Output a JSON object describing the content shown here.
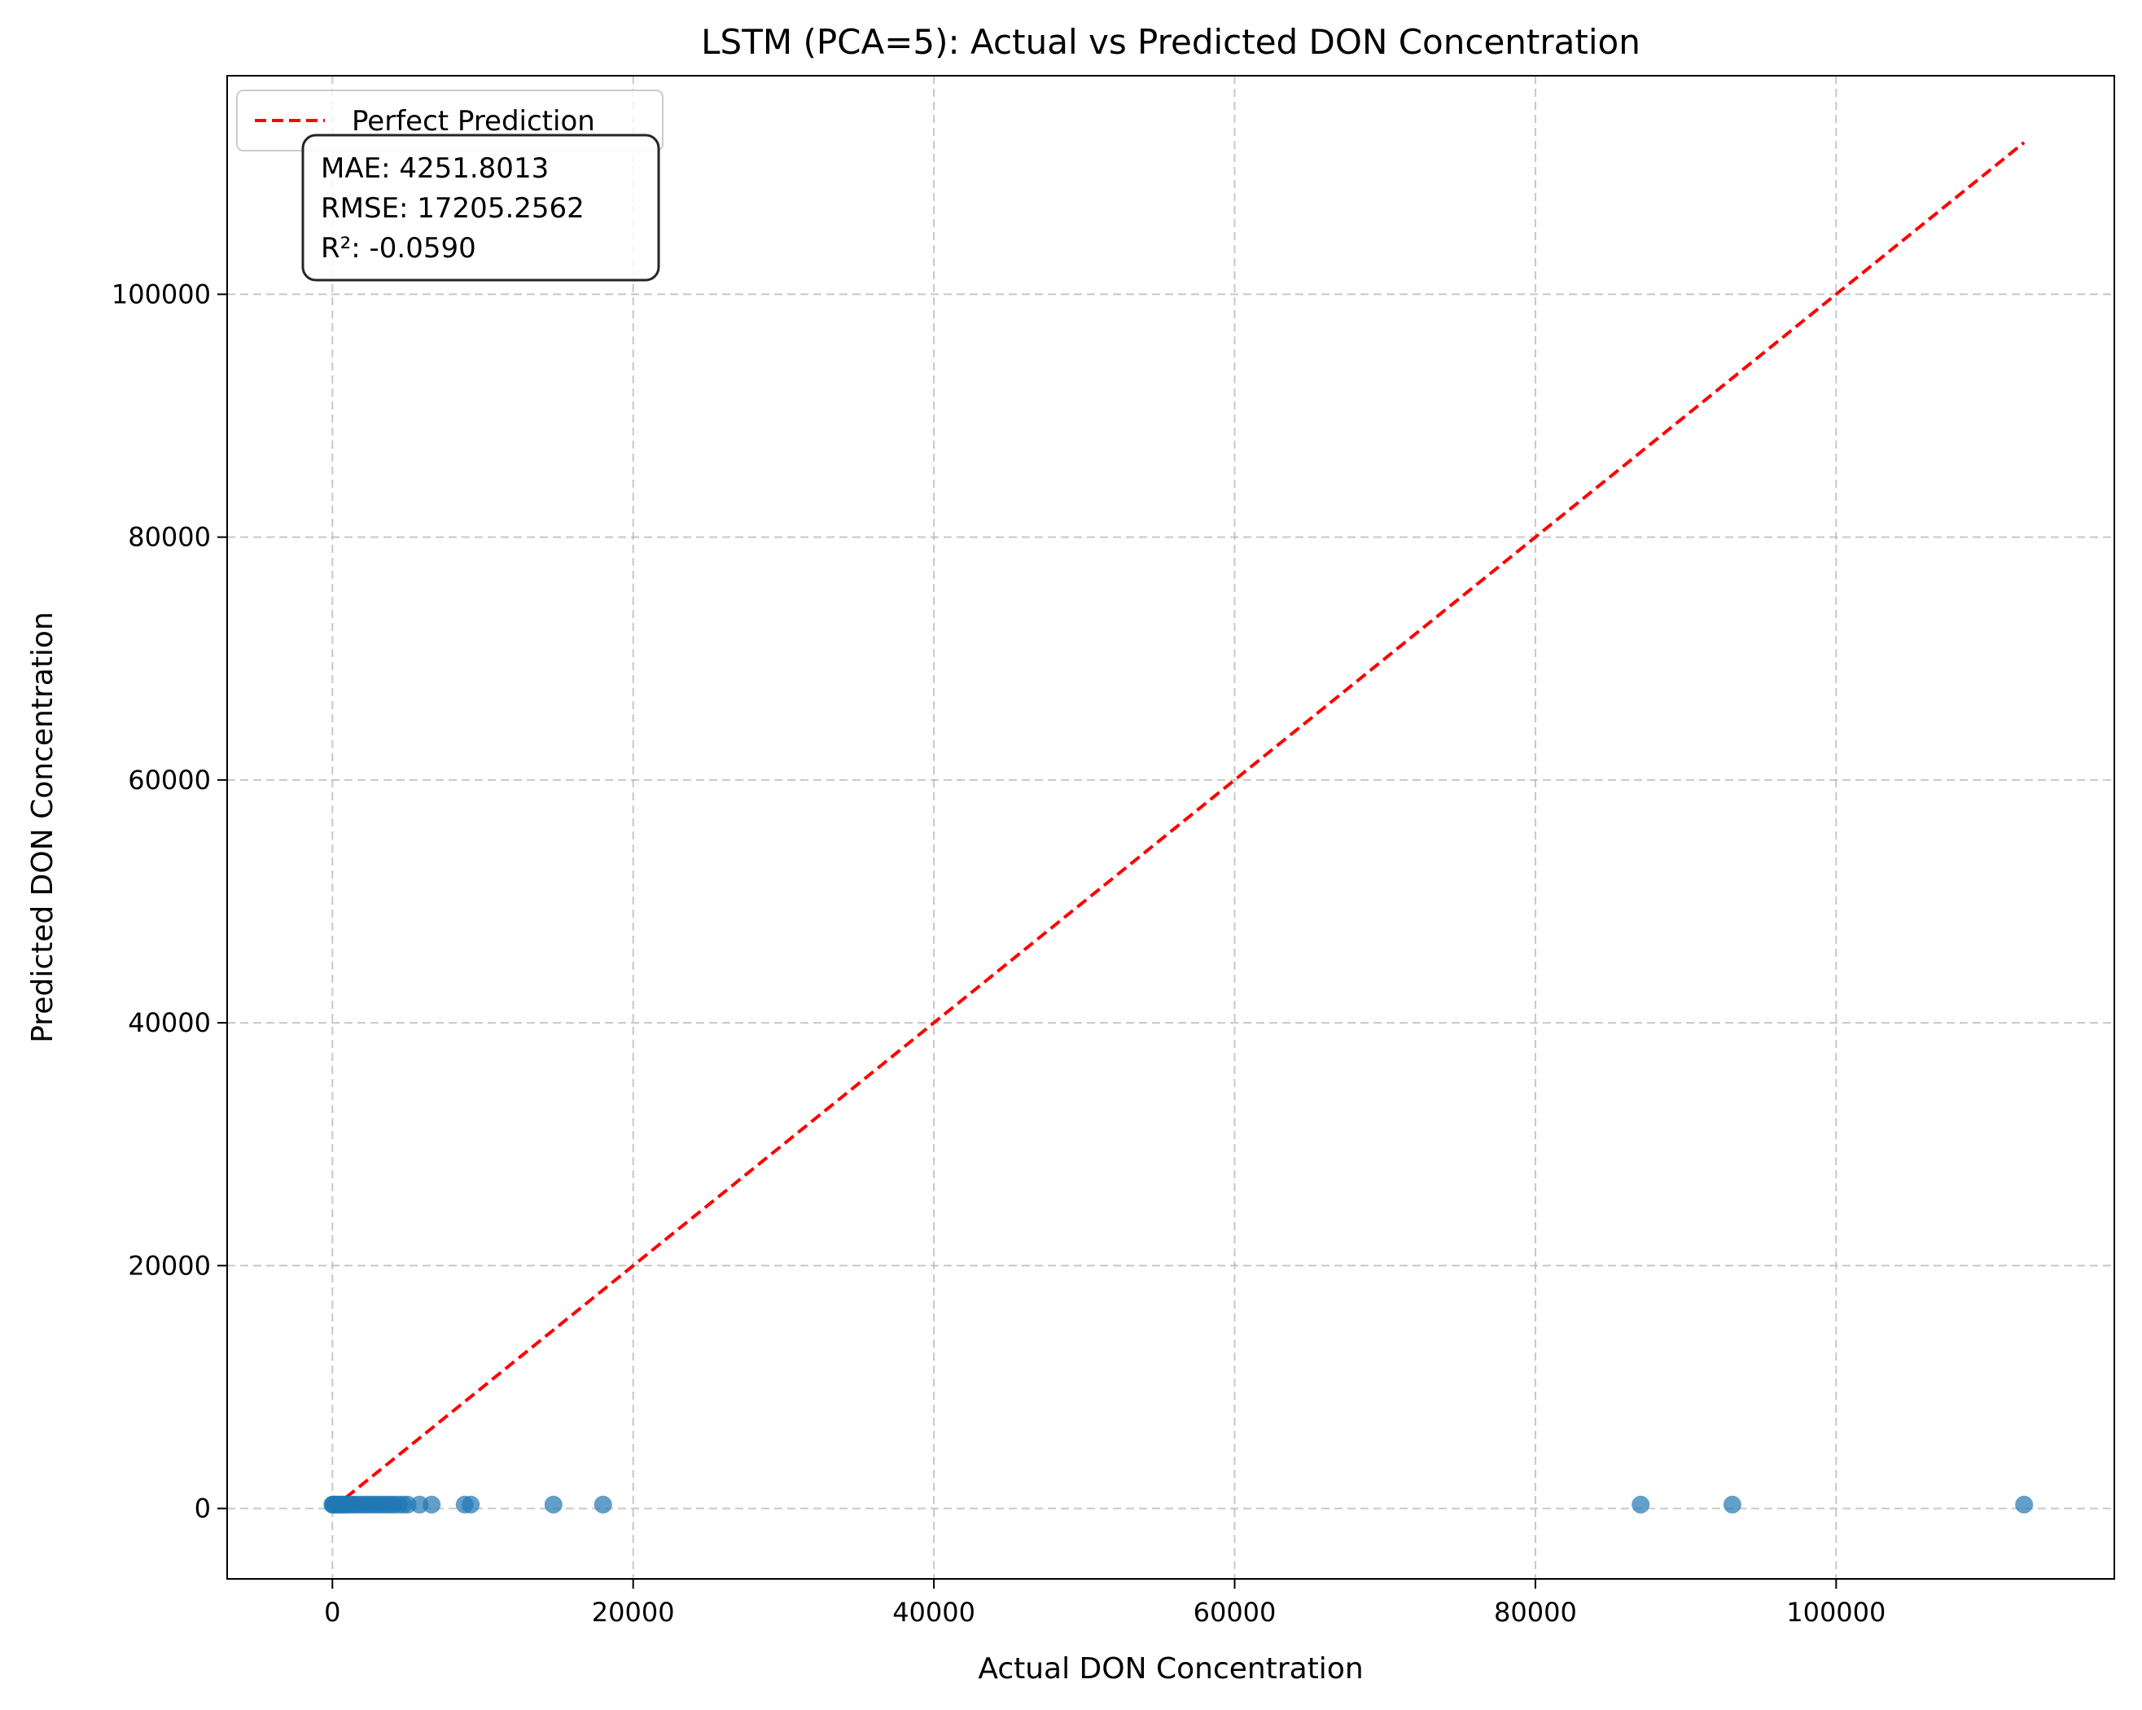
{
  "chart_data": {
    "type": "scatter",
    "title": "LSTM (PCA=5): Actual vs Predicted DON Concentration",
    "xlabel": "Actual DON Concentration",
    "ylabel": "Predicted DON Concentration",
    "xlim": [
      -7000,
      118500
    ],
    "ylim": [
      -5800,
      118000
    ],
    "xticks": [
      0,
      20000,
      40000,
      60000,
      80000,
      100000
    ],
    "xtick_labels": [
      "0",
      "20000",
      "40000",
      "60000",
      "80000",
      "100000"
    ],
    "yticks": [
      0,
      20000,
      40000,
      60000,
      80000,
      100000
    ],
    "ytick_labels": [
      "0",
      "20000",
      "40000",
      "60000",
      "80000",
      "100000"
    ],
    "grid": true,
    "legend": {
      "position": "top-left",
      "entries": [
        "Perfect Prediction"
      ]
    },
    "series": [
      {
        "type": "scatter",
        "color": "#1f77b4",
        "x": [
          0,
          50,
          120,
          200,
          300,
          420,
          560,
          700,
          850,
          1000,
          1200,
          1400,
          1600,
          1850,
          2100,
          2350,
          2600,
          2850,
          3100,
          3350,
          3600,
          3850,
          4100,
          4400,
          4700,
          5000,
          5800,
          6600,
          8800,
          9200,
          14700,
          18000,
          87000,
          93100,
          112500
        ],
        "y": [
          320,
          320,
          320,
          320,
          320,
          320,
          320,
          320,
          320,
          320,
          320,
          320,
          320,
          320,
          320,
          320,
          320,
          320,
          320,
          320,
          320,
          320,
          320,
          320,
          320,
          320,
          320,
          320,
          320,
          320,
          320,
          320,
          320,
          320,
          320
        ]
      },
      {
        "name": "Perfect Prediction",
        "type": "line",
        "style": "dashed",
        "color": "#ff0000",
        "x": [
          0,
          112500
        ],
        "y": [
          0,
          112500
        ]
      }
    ],
    "annotations": [
      "MAE: 4251.8013",
      "RMSE: 17205.2562",
      "R²: -0.0590"
    ]
  }
}
